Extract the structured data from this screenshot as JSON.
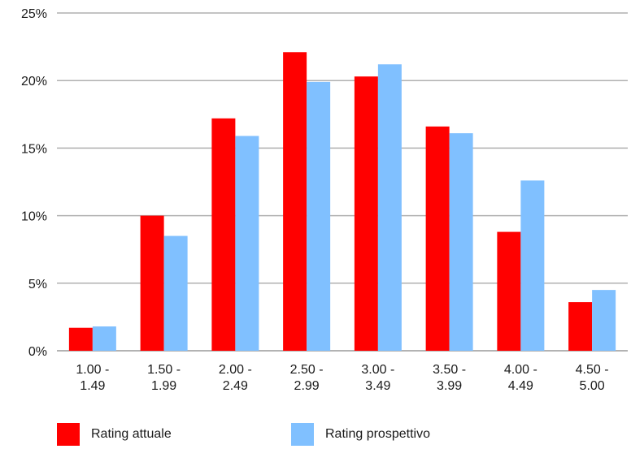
{
  "chart_data": {
    "type": "bar",
    "categories": [
      [
        "1.00 -",
        "1.49"
      ],
      [
        "1.50 -",
        "1.99"
      ],
      [
        "2.00 -",
        "2.49"
      ],
      [
        "2.50 -",
        "2.99"
      ],
      [
        "3.00 -",
        "3.49"
      ],
      [
        "3.50 -",
        "3.99"
      ],
      [
        "4.00 -",
        "4.49"
      ],
      [
        "4.50 -",
        "5.00"
      ]
    ],
    "series": [
      {
        "name": "Rating attuale",
        "color": "#ff0000",
        "values": [
          1.7,
          10.0,
          17.2,
          22.1,
          20.3,
          16.6,
          8.8,
          3.6
        ]
      },
      {
        "name": "Rating prospettivo",
        "color": "#80c0ff",
        "values": [
          1.8,
          8.5,
          15.9,
          19.9,
          21.2,
          16.1,
          12.6,
          4.5
        ]
      }
    ],
    "yticks": [
      "0%",
      "5%",
      "10%",
      "15%",
      "20%",
      "25%"
    ],
    "ylim": [
      0,
      25
    ],
    "title": "",
    "xlabel": "",
    "ylabel": "",
    "grid": true,
    "legend_position": "bottom-left"
  }
}
